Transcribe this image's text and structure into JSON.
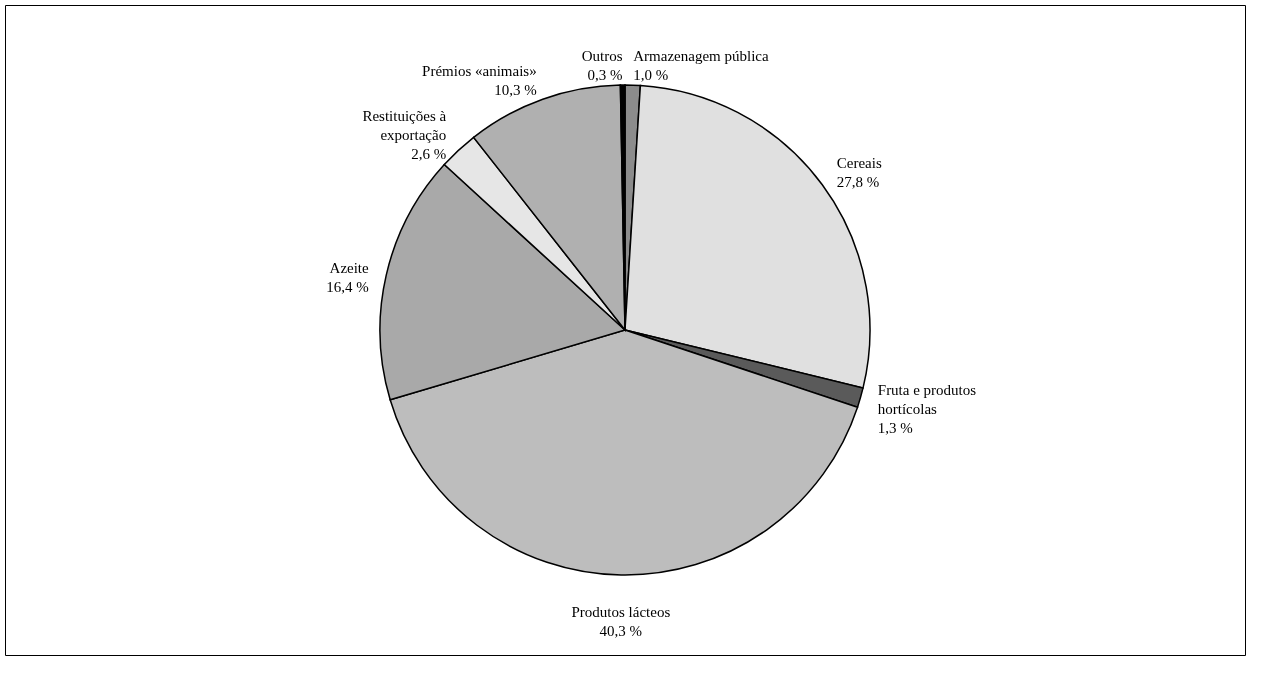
{
  "chart_data": {
    "type": "pie",
    "categories": [
      "Armazenagem pública",
      "Cereais",
      "Fruta e produtos hortícolas",
      "Produtos lácteos",
      "Azeite",
      "Restituições à exportação",
      "Prémios «animais»",
      "Outros"
    ],
    "values": [
      1.0,
      27.8,
      1.3,
      40.3,
      16.4,
      2.6,
      10.3,
      0.3
    ],
    "value_labels": [
      "1,0 %",
      "27,8 %",
      "1,3 %",
      "40,3 %",
      "16,4 %",
      "2,6 %",
      "10,3 %",
      "0,3 %"
    ],
    "colors": [
      "#8c8c8c",
      "#e0e0e0",
      "#5a5a5a",
      "#bdbdbd",
      "#a9a9a9",
      "#e6e6e6",
      "#b0b0b0",
      "#000000"
    ],
    "legend": false
  }
}
